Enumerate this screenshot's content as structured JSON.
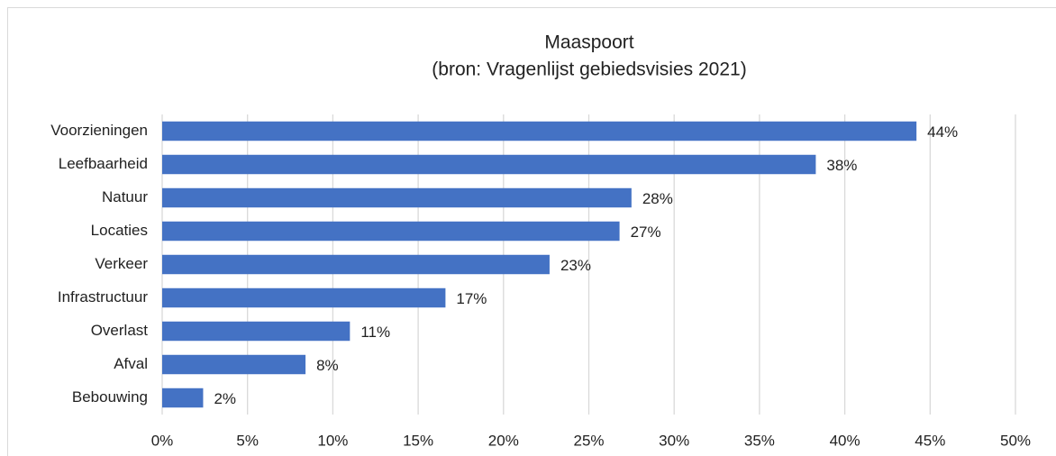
{
  "chart_data": {
    "type": "bar",
    "orientation": "horizontal",
    "title": "Maaspoort",
    "subtitle": "(bron: Vragenlijst gebiedsvisies 2021)",
    "categories": [
      "Voorzieningen",
      "Leefbaarheid",
      "Natuur",
      "Locaties",
      "Verkeer",
      "Infrastructuur",
      "Overlast",
      "Afval",
      "Bebouwing"
    ],
    "values": [
      44.2,
      38.3,
      27.5,
      26.8,
      22.7,
      16.6,
      11.0,
      8.4,
      2.4
    ],
    "value_labels": [
      "44%",
      "38%",
      "28%",
      "27%",
      "23%",
      "17%",
      "11%",
      "8%",
      "2%"
    ],
    "color": "#4472c4",
    "xlim": [
      0,
      50
    ],
    "xticks": [
      {
        "value": 0,
        "label": "0%"
      },
      {
        "value": 5,
        "label": "5%"
      },
      {
        "value": 10,
        "label": "10%"
      },
      {
        "value": 15,
        "label": "15%"
      },
      {
        "value": 20,
        "label": "20%"
      },
      {
        "value": 25,
        "label": "25%"
      },
      {
        "value": 30,
        "label": "30%"
      },
      {
        "value": 35,
        "label": "35%"
      },
      {
        "value": 40,
        "label": "40%"
      },
      {
        "value": 45,
        "label": "45%"
      },
      {
        "value": 50,
        "label": "50%"
      }
    ],
    "grid": true
  }
}
